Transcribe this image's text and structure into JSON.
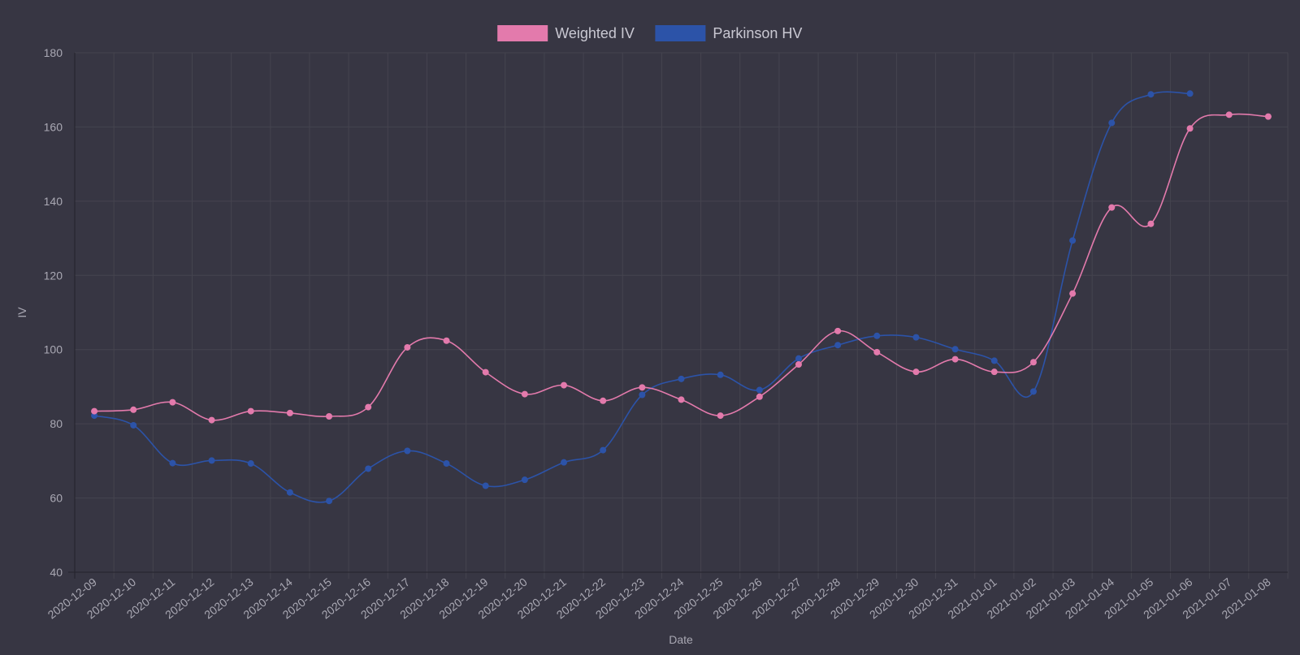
{
  "chart_data": {
    "type": "line",
    "xlabel": "Date",
    "ylabel": "IV",
    "ylim": [
      40,
      180
    ],
    "yticks": [
      40,
      60,
      80,
      100,
      120,
      140,
      160,
      180
    ],
    "grid": true,
    "legend_position": "top",
    "categories": [
      "2020-12-09",
      "2020-12-10",
      "2020-12-11",
      "2020-12-12",
      "2020-12-13",
      "2020-12-14",
      "2020-12-15",
      "2020-12-16",
      "2020-12-17",
      "2020-12-18",
      "2020-12-19",
      "2020-12-20",
      "2020-12-21",
      "2020-12-22",
      "2020-12-23",
      "2020-12-24",
      "2020-12-25",
      "2020-12-26",
      "2020-12-27",
      "2020-12-28",
      "2020-12-29",
      "2020-12-30",
      "2020-12-31",
      "2021-01-01",
      "2021-01-02",
      "2021-01-03",
      "2021-01-04",
      "2021-01-05",
      "2021-01-06",
      "2021-01-07",
      "2021-01-08"
    ],
    "series": [
      {
        "name": "Weighted IV",
        "color": "#e37aac",
        "values": [
          83.4,
          83.8,
          85.8,
          81.0,
          83.4,
          82.9,
          82.0,
          84.5,
          100.6,
          102.4,
          93.9,
          88.0,
          90.4,
          86.2,
          89.8,
          86.5,
          82.2,
          87.3,
          96.0,
          105.0,
          99.3,
          94.0,
          97.4,
          94.0,
          96.6,
          115.1,
          138.3,
          133.9,
          159.6,
          163.3,
          162.8
        ]
      },
      {
        "name": "Parkinson HV",
        "color": "#2c53a8",
        "values": [
          82.2,
          79.6,
          69.4,
          70.1,
          69.3,
          61.5,
          59.2,
          67.9,
          72.7,
          69.3,
          63.3,
          64.9,
          69.6,
          72.9,
          87.8,
          92.1,
          93.2,
          89.1,
          97.6,
          101.2,
          103.7,
          103.3,
          100.1,
          97.0,
          88.7,
          129.4,
          161.1,
          168.8,
          169.0,
          null,
          null
        ]
      }
    ]
  }
}
